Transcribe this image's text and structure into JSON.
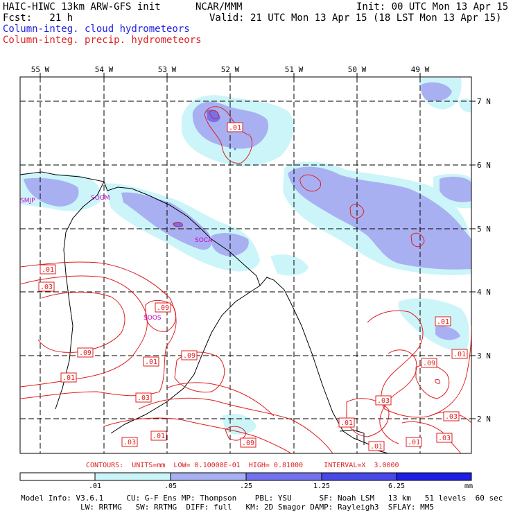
{
  "header": {
    "model_title": "HAIC-HIWC 13km ARW-GFS init",
    "org": "NCAR/MMM",
    "init": "Init: 00 UTC Mon 13 Apr 15",
    "fcst": "Fcst:   21 h",
    "valid": "Valid: 21 UTC Mon 13 Apr 15 (18 LST Mon 13 Apr 15)",
    "field_cloud": "Column-integ. cloud hydrometeors",
    "field_precip": "Column-integ. precip. hydrometeors"
  },
  "colors": {
    "cloud_light": "#ccf5fa",
    "cloud_mid": "#a8b0f2",
    "cloud_dark": "#7272ee",
    "cloud_darker": "#4848e8",
    "cloud_darkest": "#1e1ee6",
    "precip_contour": "#e01e1e",
    "station": "#cc00cc"
  },
  "map": {
    "lon_labels": [
      "55 W",
      "54 W",
      "53 W",
      "52 W",
      "51 W",
      "50 W",
      "49 W"
    ],
    "lat_labels": [
      "7 N",
      "6 N",
      "5 N",
      "4 N",
      "3 N",
      "2 N"
    ],
    "stations": [
      "SMJP",
      "SOGM",
      "SOCA",
      "SOOS"
    ],
    "contour_labels": [
      ".01",
      ".01",
      ".03",
      ".09",
      ".09",
      ".01",
      ".09",
      ".01",
      ".03",
      ".03",
      ".01",
      ".09",
      ".01",
      ".01",
      ".03",
      ".01",
      ".09",
      ".03",
      ".01",
      ".03",
      ".01"
    ]
  },
  "contours_line": "CONTOURS:  UNITS=mm  LOW= 0.10000E-01  HIGH= 0.81000     INTERVAL=X  3.0000",
  "colorbar": {
    "labels": [
      ".01",
      ".05",
      ".25",
      "1.25",
      "6.25"
    ],
    "unit": "mm"
  },
  "footer": {
    "line1": "Model Info: V3.6.1     CU: G-F Ens MP: Thompson    PBL: YSU      SF: Noah LSM   13 km   51 levels  60 sec",
    "line2": "             LW: RRTMG   SW: RRTMG  DIFF: full   KM: 2D Smagor DAMP: Rayleigh3  SFLAY: MM5"
  }
}
